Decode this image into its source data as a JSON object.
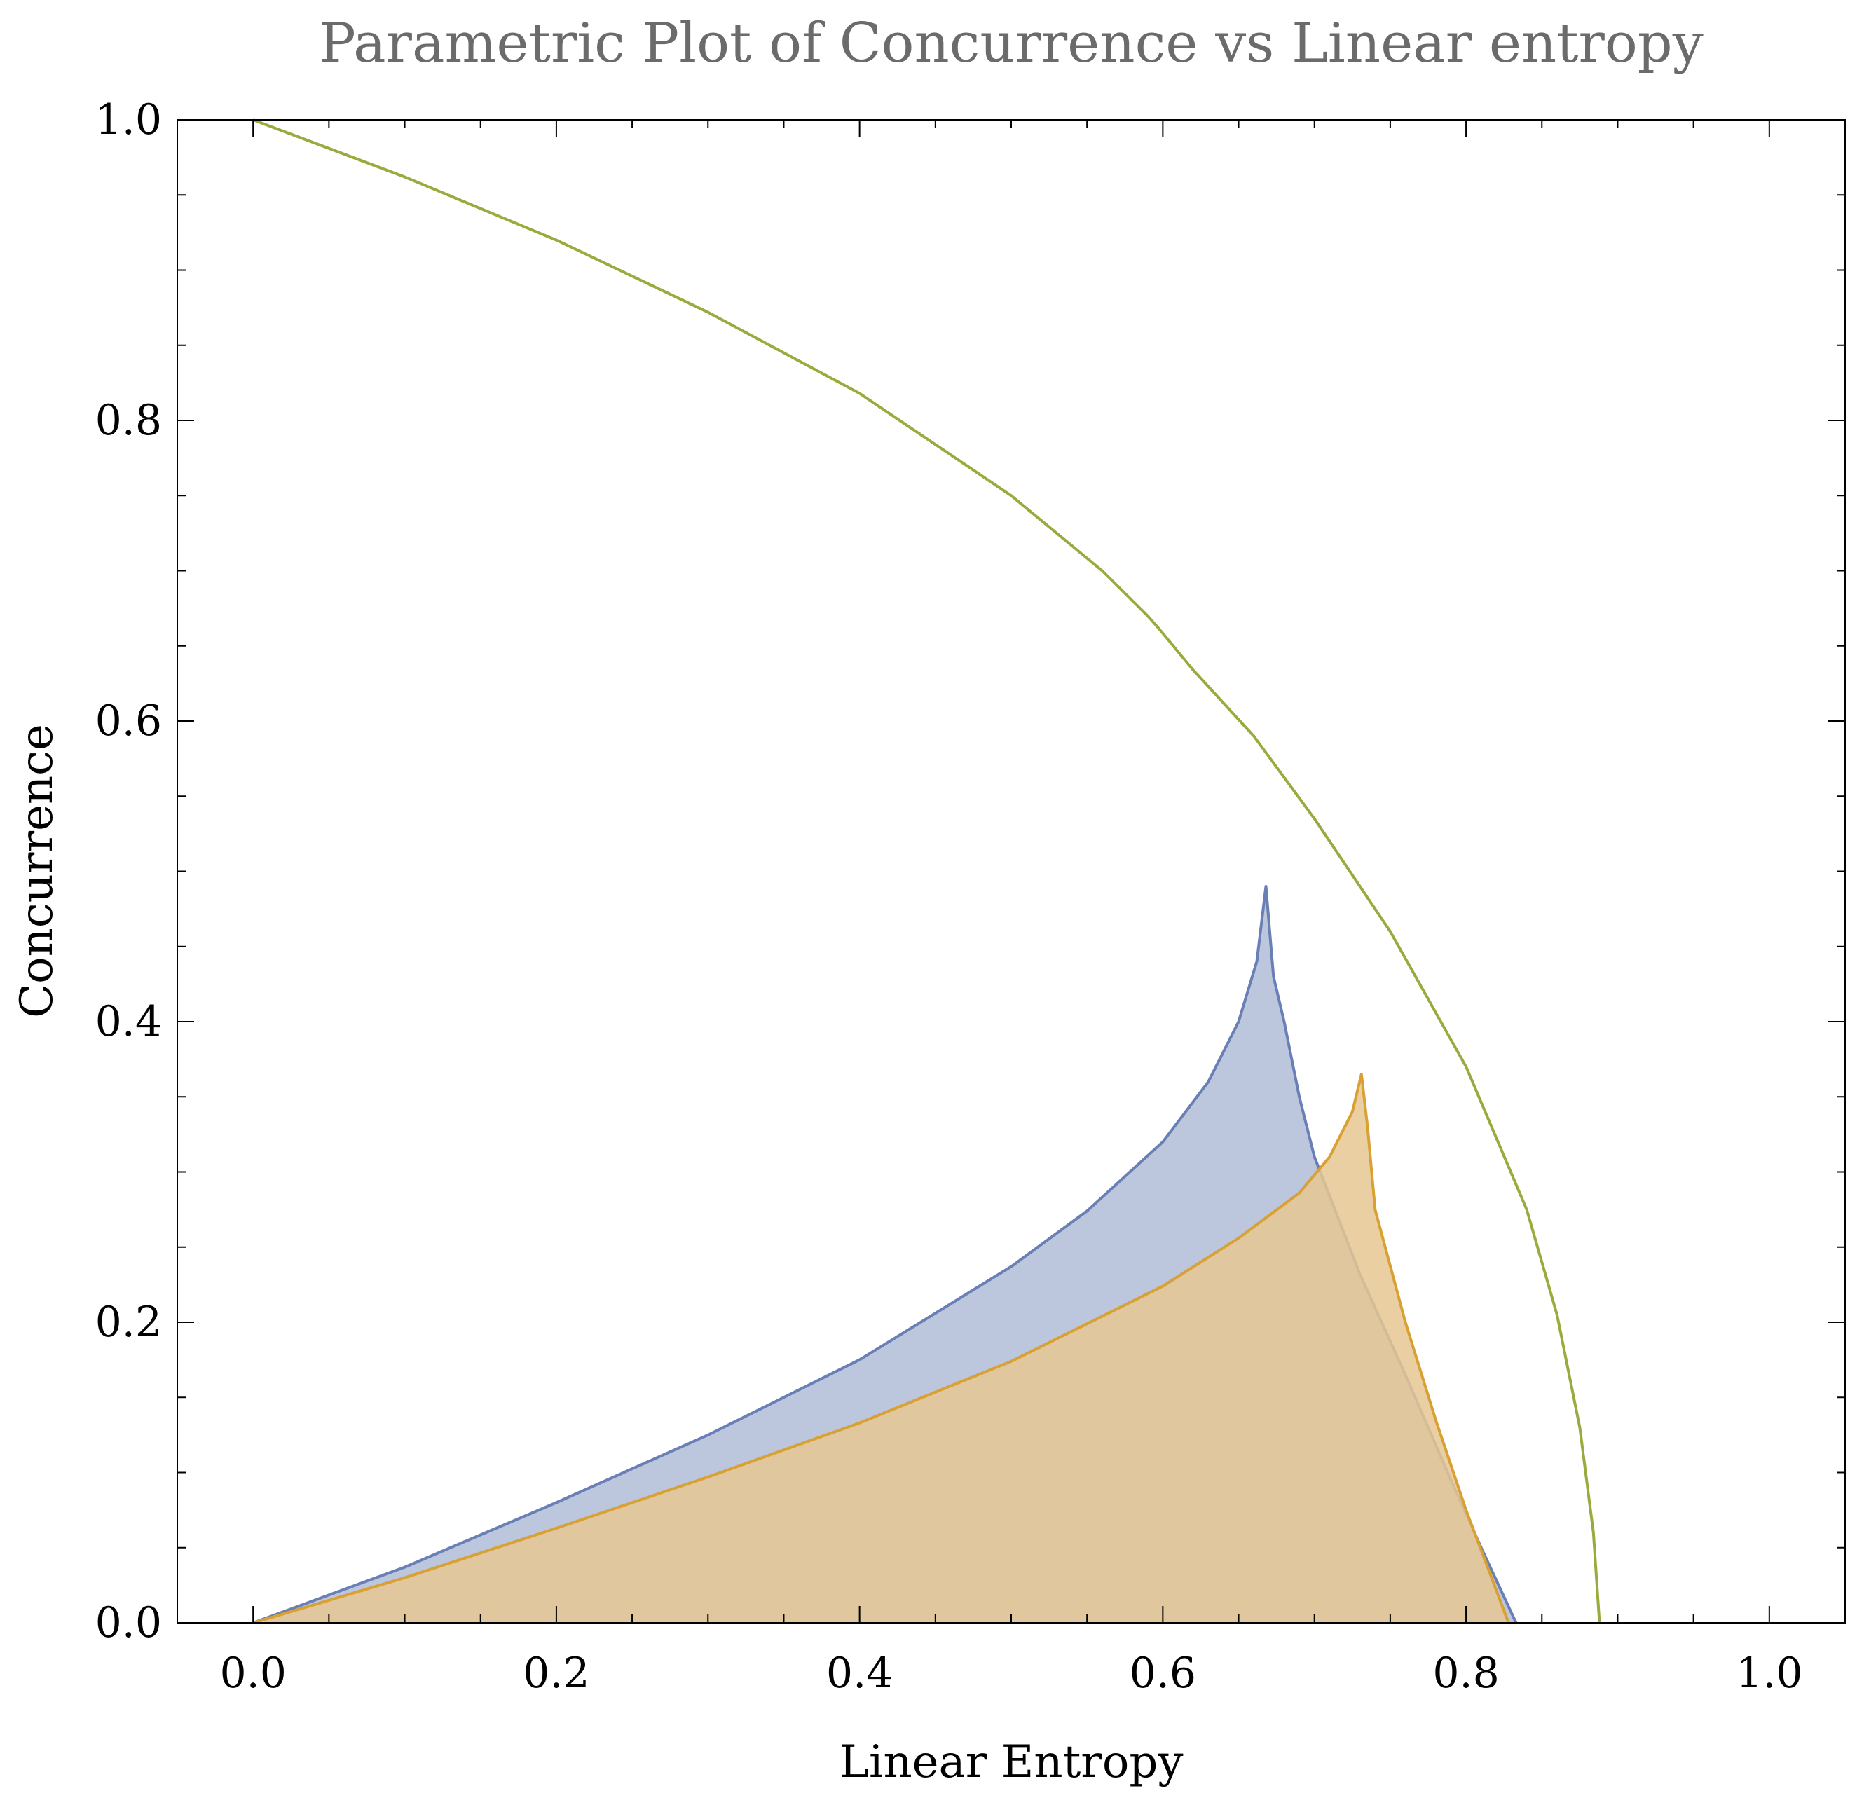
{
  "chart_data": {
    "type": "area",
    "title": "Parametric Plot of Concurrence vs Linear entropy",
    "xlabel": "Linear Entropy",
    "ylabel": "Concurrence",
    "xlim": [
      -0.05,
      1.05
    ],
    "ylim": [
      0.0,
      1.0
    ],
    "xticks": [
      "0.0",
      "0.2",
      "0.4",
      "0.6",
      "0.8",
      "1.0"
    ],
    "yticks": [
      "0.0",
      "0.2",
      "0.4",
      "0.6",
      "0.8",
      "1.0"
    ],
    "grid": false,
    "legend": "none",
    "series": [
      {
        "kind": "filled-region",
        "color": "#6a7fb5",
        "fill": "#b0bdd8",
        "points": [
          [
            0.0,
            0.0
          ],
          [
            0.1,
            0.037
          ],
          [
            0.2,
            0.08
          ],
          [
            0.3,
            0.125
          ],
          [
            0.4,
            0.175
          ],
          [
            0.5,
            0.237
          ],
          [
            0.55,
            0.274
          ],
          [
            0.6,
            0.32
          ],
          [
            0.63,
            0.36
          ],
          [
            0.65,
            0.4
          ],
          [
            0.662,
            0.44
          ],
          [
            0.668,
            0.49
          ],
          [
            0.673,
            0.43
          ],
          [
            0.68,
            0.4
          ],
          [
            0.69,
            0.35
          ],
          [
            0.7,
            0.31
          ],
          [
            0.73,
            0.232
          ],
          [
            0.76,
            0.165
          ],
          [
            0.79,
            0.095
          ],
          [
            0.81,
            0.05
          ],
          [
            0.833,
            0.0
          ]
        ]
      },
      {
        "kind": "filled-region",
        "color": "#d9a033",
        "fill": "#e6c793",
        "points": [
          [
            0.0,
            0.0
          ],
          [
            0.1,
            0.03
          ],
          [
            0.2,
            0.063
          ],
          [
            0.3,
            0.097
          ],
          [
            0.4,
            0.133
          ],
          [
            0.5,
            0.174
          ],
          [
            0.6,
            0.224
          ],
          [
            0.65,
            0.256
          ],
          [
            0.69,
            0.286
          ],
          [
            0.71,
            0.31
          ],
          [
            0.725,
            0.34
          ],
          [
            0.731,
            0.365
          ],
          [
            0.735,
            0.33
          ],
          [
            0.74,
            0.275
          ],
          [
            0.76,
            0.2
          ],
          [
            0.78,
            0.135
          ],
          [
            0.8,
            0.075
          ],
          [
            0.828,
            0.0
          ]
        ]
      },
      {
        "kind": "curve",
        "color": "#9aab3e",
        "points": [
          [
            0.0,
            1.0
          ],
          [
            0.1,
            0.962
          ],
          [
            0.2,
            0.92
          ],
          [
            0.3,
            0.872
          ],
          [
            0.4,
            0.818
          ],
          [
            0.5,
            0.75
          ],
          [
            0.56,
            0.7
          ],
          [
            0.59,
            0.67
          ],
          [
            0.597,
            0.662
          ],
          [
            0.62,
            0.634
          ],
          [
            0.66,
            0.59
          ],
          [
            0.7,
            0.535
          ],
          [
            0.75,
            0.46
          ],
          [
            0.8,
            0.37
          ],
          [
            0.84,
            0.275
          ],
          [
            0.86,
            0.205
          ],
          [
            0.875,
            0.13
          ],
          [
            0.884,
            0.06
          ],
          [
            0.888,
            0.0
          ]
        ]
      }
    ]
  }
}
